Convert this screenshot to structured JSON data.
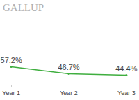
{
  "chart_data": {
    "type": "line",
    "title": "GALLUP",
    "categories": [
      "Year 1",
      "Year 2",
      "Year 3"
    ],
    "values": [
      57.2,
      46.7,
      44.4
    ],
    "value_labels": [
      "57.2%",
      "46.7%",
      "44.4%"
    ],
    "data_labels": true,
    "color": "#3fae3f",
    "marker": "circle",
    "ylim": [
      30,
      60
    ],
    "grid": false,
    "tick_labels": "x"
  }
}
